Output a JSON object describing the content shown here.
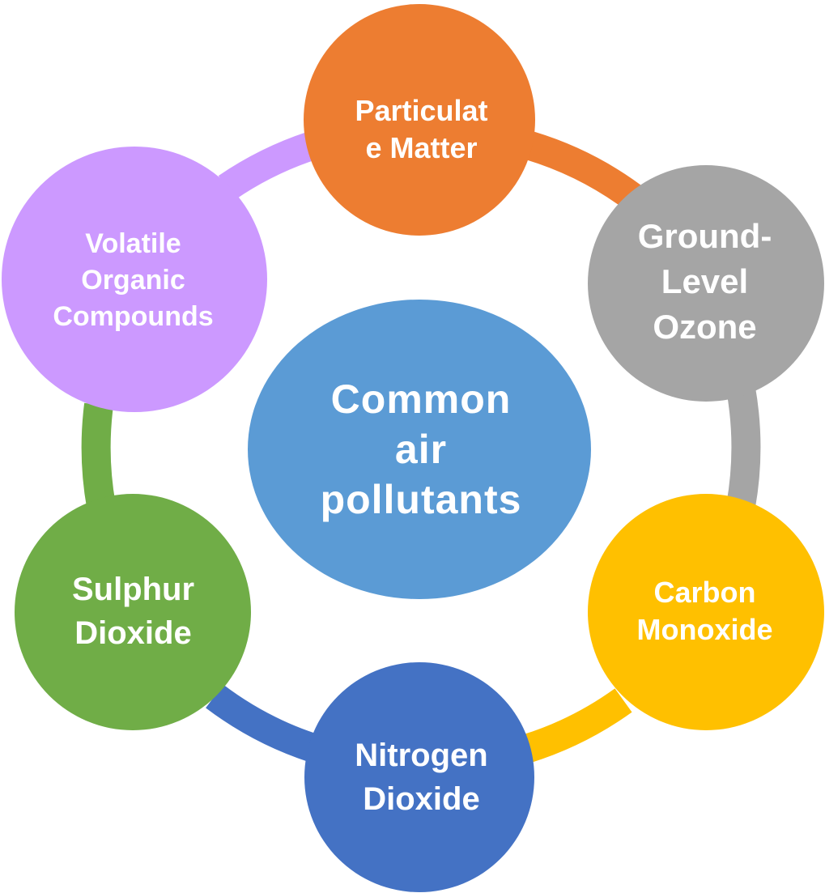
{
  "diagram": {
    "center": {
      "label": "Common\nair\npollutants",
      "color": "#5B9BD5"
    },
    "nodes": [
      {
        "id": "pm",
        "label": "Particulat\ne Matter",
        "color": "#ED7D31"
      },
      {
        "id": "ozone",
        "label": "Ground-\nLevel\nOzone",
        "color": "#A5A5A5"
      },
      {
        "id": "co",
        "label": "Carbon\nMonoxide",
        "color": "#FFC000"
      },
      {
        "id": "no2",
        "label": "Nitrogen\nDioxide",
        "color": "#4472C4"
      },
      {
        "id": "so2",
        "label": "Sulphur\nDioxide",
        "color": "#70AD47"
      },
      {
        "id": "voc",
        "label": "Volatile\nOrganic\nCompounds",
        "color": "#CC99FF"
      }
    ]
  }
}
